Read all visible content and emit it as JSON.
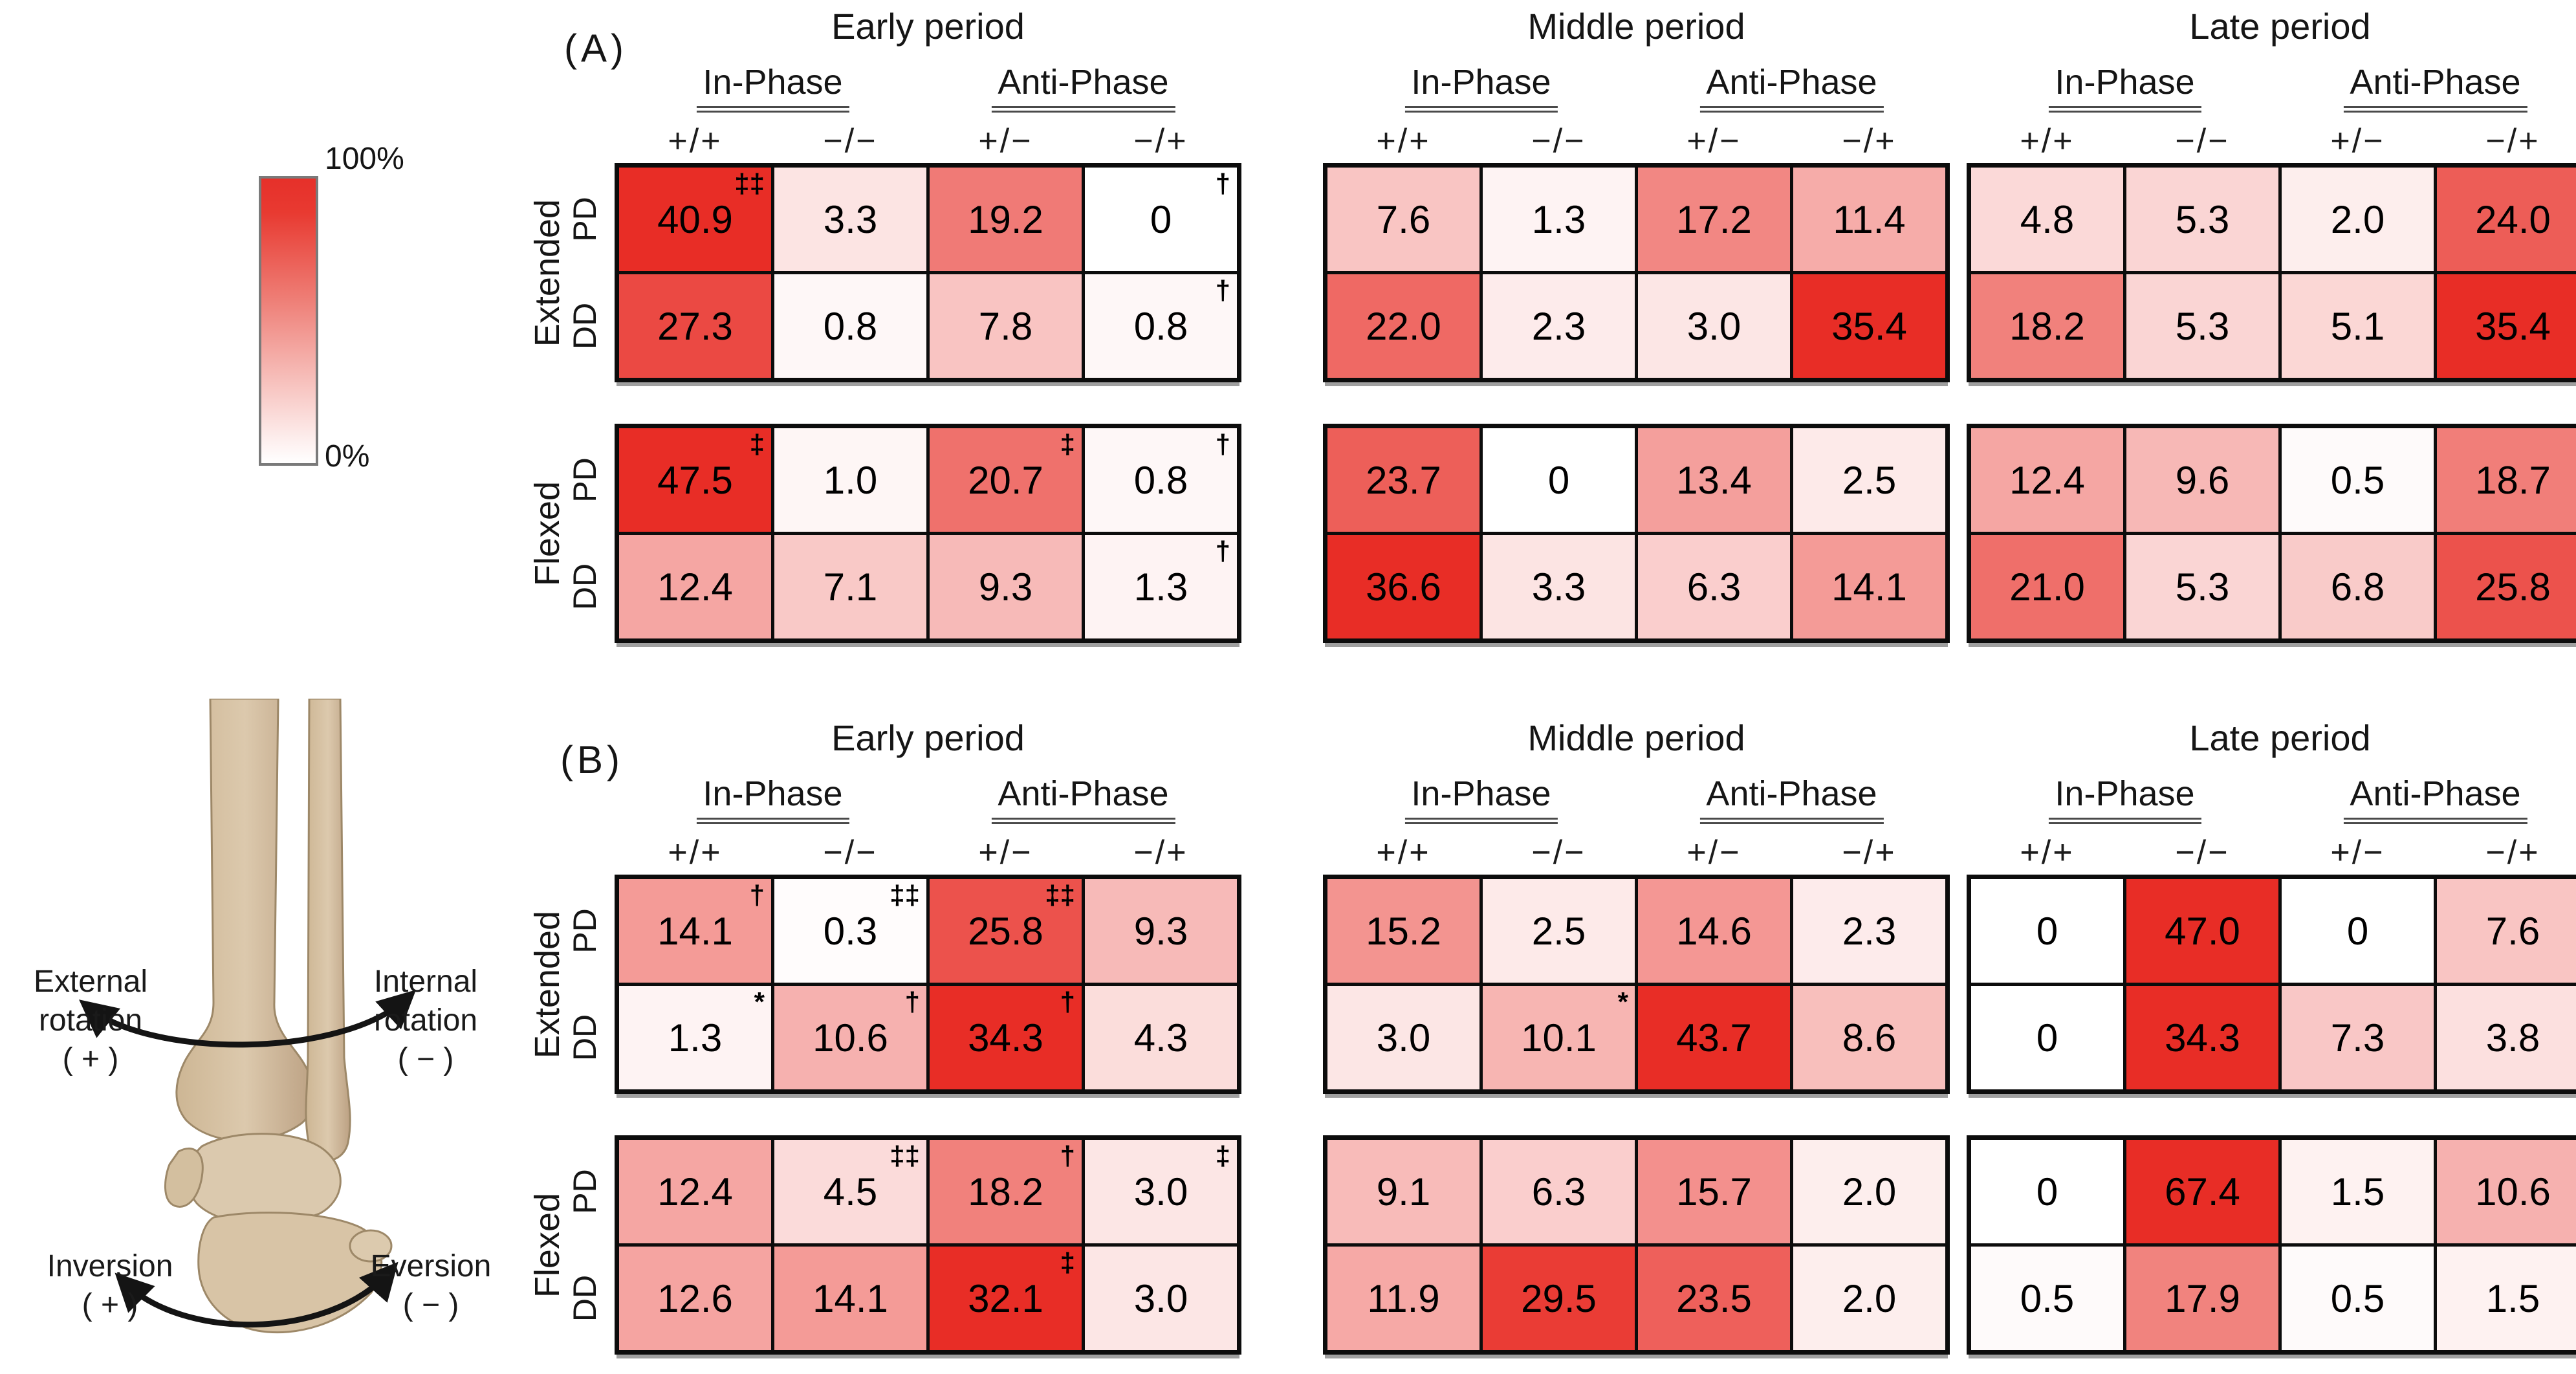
{
  "legend": {
    "max_label": "100%",
    "min_label": "0%"
  },
  "ankle": {
    "external": [
      "External",
      "rotation",
      "( + )"
    ],
    "internal": [
      "Internal",
      "rotation",
      "( − )"
    ],
    "inversion": [
      "Inversion",
      "( + )"
    ],
    "eversion": [
      "Eversion",
      "( − )"
    ]
  },
  "chart_data": {
    "type": "heatmap",
    "unit": "%",
    "colormap": {
      "min": 0,
      "max": 100,
      "min_label": "0%",
      "max_label": "100%",
      "min_color": "#ffffff",
      "max_color": "#e8342b"
    },
    "column_groups": [
      "In-Phase",
      "Anti-Phase"
    ],
    "columns": [
      "+/+",
      "−/−",
      "+/−",
      "−/+"
    ],
    "row_blocks": [
      "Extended",
      "Flexed"
    ],
    "rows": [
      "PD",
      "DD"
    ],
    "period_titles": [
      "Early period",
      "Middle period",
      "Late period"
    ],
    "panels": [
      {
        "label": "(A)",
        "periods": [
          {
            "title": "Early period",
            "blocks": [
              {
                "name": "Extended",
                "rows": [
                  {
                    "name": "PD",
                    "values": [
                      "40.9",
                      "3.3",
                      "19.2",
                      "0"
                    ],
                    "symbols": [
                      "‡‡",
                      "",
                      "",
                      "†"
                    ]
                  },
                  {
                    "name": "DD",
                    "values": [
                      "27.3",
                      "0.8",
                      "7.8",
                      "0.8"
                    ],
                    "symbols": [
                      "",
                      "",
                      "",
                      "†"
                    ]
                  }
                ]
              },
              {
                "name": "Flexed",
                "rows": [
                  {
                    "name": "PD",
                    "values": [
                      "47.5",
                      "1.0",
                      "20.7",
                      "0.8"
                    ],
                    "symbols": [
                      "‡",
                      "",
                      "‡",
                      "†"
                    ]
                  },
                  {
                    "name": "DD",
                    "values": [
                      "12.4",
                      "7.1",
                      "9.3",
                      "1.3"
                    ],
                    "symbols": [
                      "",
                      "",
                      "",
                      "†"
                    ]
                  }
                ]
              }
            ]
          },
          {
            "title": "Middle period",
            "blocks": [
              {
                "name": "Extended",
                "rows": [
                  {
                    "name": "PD",
                    "values": [
                      "7.6",
                      "1.3",
                      "17.2",
                      "11.4"
                    ],
                    "symbols": [
                      "",
                      "",
                      "",
                      ""
                    ]
                  },
                  {
                    "name": "DD",
                    "values": [
                      "22.0",
                      "2.3",
                      "3.0",
                      "35.4"
                    ],
                    "symbols": [
                      "",
                      "",
                      "",
                      ""
                    ]
                  }
                ]
              },
              {
                "name": "Flexed",
                "rows": [
                  {
                    "name": "PD",
                    "values": [
                      "23.7",
                      "0",
                      "13.4",
                      "2.5"
                    ],
                    "symbols": [
                      "",
                      "",
                      "",
                      ""
                    ]
                  },
                  {
                    "name": "DD",
                    "values": [
                      "36.6",
                      "3.3",
                      "6.3",
                      "14.1"
                    ],
                    "symbols": [
                      "",
                      "",
                      "",
                      ""
                    ]
                  }
                ]
              }
            ]
          },
          {
            "title": "Late period",
            "blocks": [
              {
                "name": "Extended",
                "rows": [
                  {
                    "name": "PD",
                    "values": [
                      "4.8",
                      "5.3",
                      "2.0",
                      "24.0"
                    ],
                    "symbols": [
                      "",
                      "",
                      "",
                      ""
                    ]
                  },
                  {
                    "name": "DD",
                    "values": [
                      "18.2",
                      "5.3",
                      "5.1",
                      "35.4"
                    ],
                    "symbols": [
                      "",
                      "",
                      "",
                      ""
                    ]
                  }
                ]
              },
              {
                "name": "Flexed",
                "rows": [
                  {
                    "name": "PD",
                    "values": [
                      "12.4",
                      "9.6",
                      "0.5",
                      "18.7"
                    ],
                    "symbols": [
                      "",
                      "",
                      "",
                      ""
                    ]
                  },
                  {
                    "name": "DD",
                    "values": [
                      "21.0",
                      "5.3",
                      "6.8",
                      "25.8"
                    ],
                    "symbols": [
                      "",
                      "",
                      "",
                      ""
                    ]
                  }
                ]
              }
            ]
          }
        ]
      },
      {
        "label": "(B)",
        "periods": [
          {
            "title": "Early period",
            "blocks": [
              {
                "name": "Extended",
                "rows": [
                  {
                    "name": "PD",
                    "values": [
                      "14.1",
                      "0.3",
                      "25.8",
                      "9.3"
                    ],
                    "symbols": [
                      "†",
                      "‡‡",
                      "‡‡",
                      ""
                    ]
                  },
                  {
                    "name": "DD",
                    "values": [
                      "1.3",
                      "10.6",
                      "34.3",
                      "4.3"
                    ],
                    "symbols": [
                      "*",
                      "†",
                      "†",
                      ""
                    ]
                  }
                ]
              },
              {
                "name": "Flexed",
                "rows": [
                  {
                    "name": "PD",
                    "values": [
                      "12.4",
                      "4.5",
                      "18.2",
                      "3.0"
                    ],
                    "symbols": [
                      "",
                      "‡‡",
                      "†",
                      "‡"
                    ]
                  },
                  {
                    "name": "DD",
                    "values": [
                      "12.6",
                      "14.1",
                      "32.1",
                      "3.0"
                    ],
                    "symbols": [
                      "",
                      "",
                      "‡",
                      ""
                    ]
                  }
                ]
              }
            ]
          },
          {
            "title": "Middle period",
            "blocks": [
              {
                "name": "Extended",
                "rows": [
                  {
                    "name": "PD",
                    "values": [
                      "15.2",
                      "2.5",
                      "14.6",
                      "2.3"
                    ],
                    "symbols": [
                      "",
                      "",
                      "",
                      ""
                    ]
                  },
                  {
                    "name": "DD",
                    "values": [
                      "3.0",
                      "10.1",
                      "43.7",
                      "8.6"
                    ],
                    "symbols": [
                      "",
                      "*",
                      "",
                      ""
                    ]
                  }
                ]
              },
              {
                "name": "Flexed",
                "rows": [
                  {
                    "name": "PD",
                    "values": [
                      "9.1",
                      "6.3",
                      "15.7",
                      "2.0"
                    ],
                    "symbols": [
                      "",
                      "",
                      "",
                      ""
                    ]
                  },
                  {
                    "name": "DD",
                    "values": [
                      "11.9",
                      "29.5",
                      "23.5",
                      "2.0"
                    ],
                    "symbols": [
                      "",
                      "",
                      "",
                      ""
                    ]
                  }
                ]
              }
            ]
          },
          {
            "title": "Late period",
            "blocks": [
              {
                "name": "Extended",
                "rows": [
                  {
                    "name": "PD",
                    "values": [
                      "0",
                      "47.0",
                      "0",
                      "7.6"
                    ],
                    "symbols": [
                      "",
                      "",
                      "",
                      ""
                    ]
                  },
                  {
                    "name": "DD",
                    "values": [
                      "0",
                      "34.3",
                      "7.3",
                      "3.8"
                    ],
                    "symbols": [
                      "",
                      "",
                      "",
                      ""
                    ]
                  }
                ]
              },
              {
                "name": "Flexed",
                "rows": [
                  {
                    "name": "PD",
                    "values": [
                      "0",
                      "67.4",
                      "1.5",
                      "10.6"
                    ],
                    "symbols": [
                      "",
                      "",
                      "",
                      ""
                    ]
                  },
                  {
                    "name": "DD",
                    "values": [
                      "0.5",
                      "17.9",
                      "0.5",
                      "1.5"
                    ],
                    "symbols": [
                      "",
                      "",
                      "",
                      ""
                    ]
                  }
                ]
              }
            ]
          }
        ]
      }
    ]
  }
}
